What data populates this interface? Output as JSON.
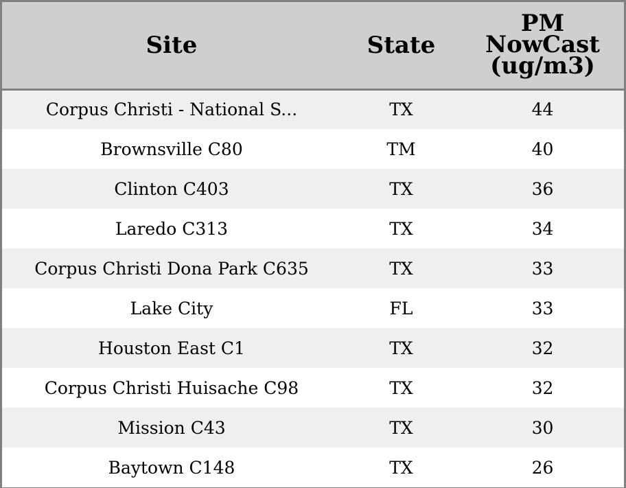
{
  "table": {
    "headers": {
      "site": "Site",
      "state": "State",
      "pm_line1": "PM",
      "pm_line2": "NowCast",
      "pm_line3": "(ug/m3)"
    },
    "rows": [
      {
        "site": "Corpus Christi - National S...",
        "state": "TX",
        "pm": "44"
      },
      {
        "site": "Brownsville C80",
        "state": "TM",
        "pm": "40"
      },
      {
        "site": "Clinton C403",
        "state": "TX",
        "pm": "36"
      },
      {
        "site": "Laredo C313",
        "state": "TX",
        "pm": "34"
      },
      {
        "site": "Corpus Christi Dona Park C635",
        "state": "TX",
        "pm": "33"
      },
      {
        "site": "Lake City",
        "state": "FL",
        "pm": "33"
      },
      {
        "site": "Houston East C1",
        "state": "TX",
        "pm": "32"
      },
      {
        "site": "Corpus Christi Huisache C98",
        "state": "TX",
        "pm": "32"
      },
      {
        "site": "Mission C43",
        "state": "TX",
        "pm": "30"
      },
      {
        "site": "Baytown C148",
        "state": "TX",
        "pm": "26"
      }
    ]
  }
}
